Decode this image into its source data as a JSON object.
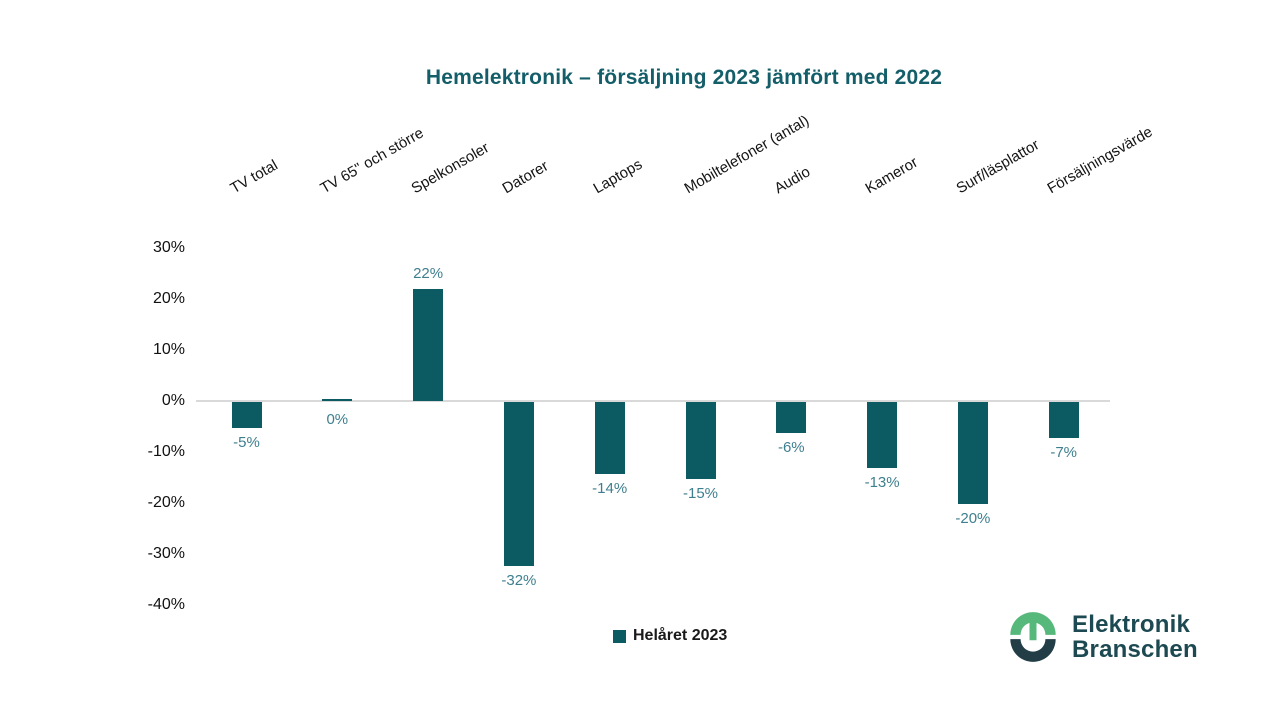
{
  "title": "Hemelektronik – försäljning 2023 jämfört med 2022",
  "chart_data": {
    "type": "bar",
    "title": "Hemelektronik – försäljning 2023 jämfört med 2022",
    "categories": [
      "TV total",
      "TV 65\" och större",
      "Spelkonsoler",
      "Datorer",
      "Laptops",
      "Mobiltelefoner (antal)",
      "Audio",
      "Kameror",
      "Surf/läsplattor",
      "Försäljningsvärde"
    ],
    "values": [
      -5,
      0,
      22,
      -32,
      -14,
      -15,
      -6,
      -13,
      -20,
      -7
    ],
    "value_labels": [
      "-5%",
      "0%",
      "22%",
      "-32%",
      "-14%",
      "-15%",
      "-6%",
      "-13%",
      "-20%",
      "-7%"
    ],
    "series": [
      {
        "name": "Helåret 2023",
        "values": [
          -5,
          0,
          22,
          -32,
          -14,
          -15,
          -6,
          -13,
          -20,
          -7
        ]
      }
    ],
    "yticks": [
      {
        "value": 30,
        "label": "30%"
      },
      {
        "value": 20,
        "label": "20%"
      },
      {
        "value": 10,
        "label": "10%"
      },
      {
        "value": 0,
        "label": "0%"
      },
      {
        "value": -10,
        "label": "-10%"
      },
      {
        "value": -20,
        "label": "-20%"
      },
      {
        "value": -30,
        "label": "-30%"
      },
      {
        "value": -40,
        "label": "-40%"
      }
    ],
    "ylim": [
      -40,
      30
    ],
    "xlabel": "",
    "ylabel": "",
    "grid": "zero-line-only",
    "legend_position": "bottom"
  },
  "legend": {
    "label": "Helåret 2023"
  },
  "logo": {
    "line1": "Elektronik",
    "line2": "Branschen"
  },
  "colors": {
    "bar": "#0d5b62",
    "value_label": "#3e7f8e",
    "title": "#135e69",
    "axis_line": "#d9d9d9",
    "text": "#141414",
    "logo_text": "#1d4a52",
    "logo_green": "#57b87c",
    "logo_dark": "#223d46"
  }
}
